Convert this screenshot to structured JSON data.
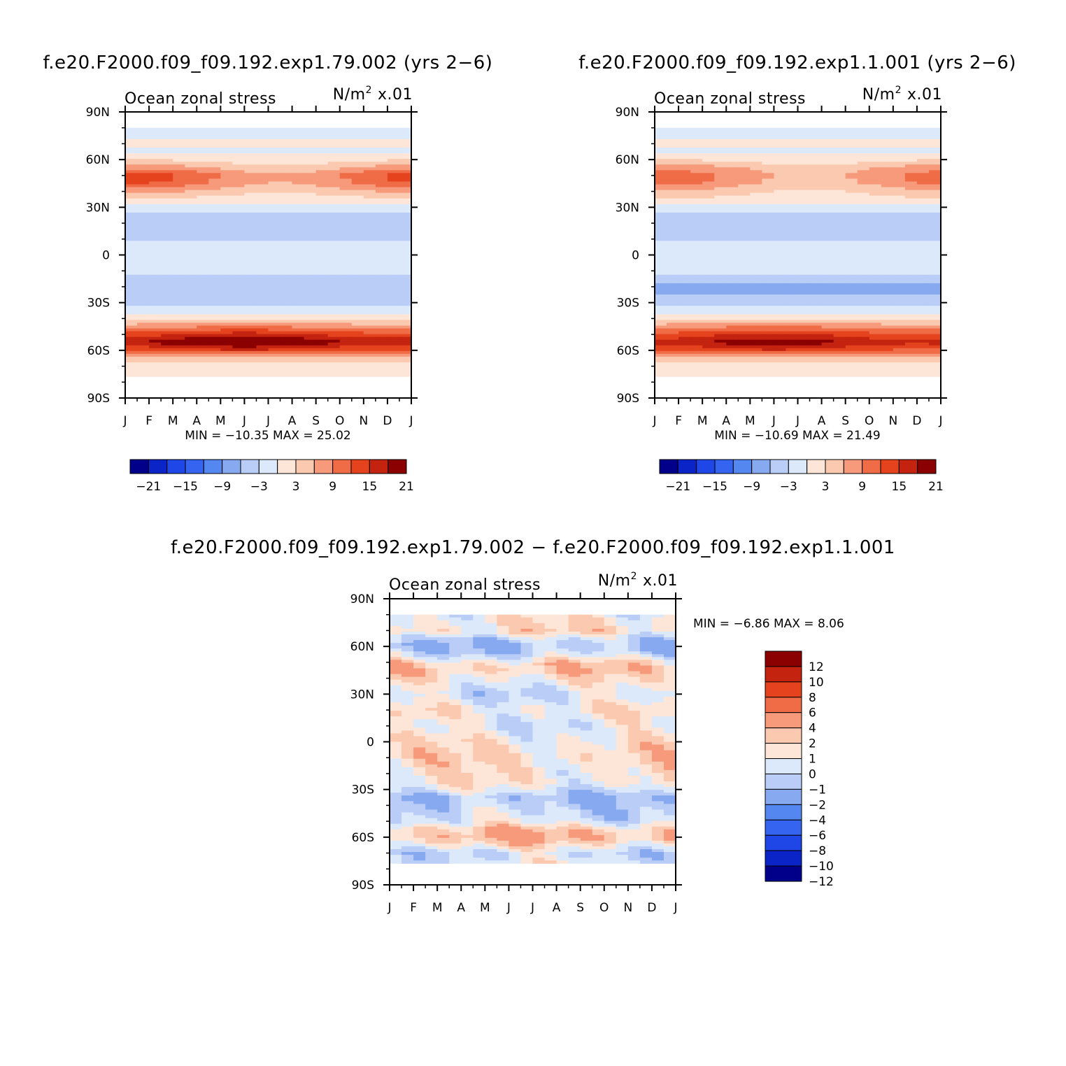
{
  "palette": [
    "#00008b",
    "#0b24c8",
    "#1f46e6",
    "#3565f0",
    "#5487f0",
    "#86a9f0",
    "#b9cdf7",
    "#dce9fb",
    "#fde6d7",
    "#fbc9b0",
    "#f69a7b",
    "#ef6c47",
    "#e5431e",
    "#c42310",
    "#8b0000"
  ],
  "chart_data": [
    {
      "id": "p1",
      "type": "heatmap",
      "title": "f.e20.F2000.f09_f09.192.exp1.79.002 (yrs 2−6)",
      "subtitle_left": "Ocean zonal stress",
      "subtitle_right_units": "N/m",
      "subtitle_right_exp": "2",
      "subtitle_right_scale": "x.01",
      "x_tick_labels": [
        "J",
        "F",
        "M",
        "A",
        "M",
        "J",
        "J",
        "A",
        "S",
        "O",
        "N",
        "D",
        "J"
      ],
      "y_tick_labels": [
        "90N",
        "60N",
        "30N",
        "0",
        "30S",
        "60S",
        "90S"
      ],
      "x_range": [
        0,
        12
      ],
      "y_range": [
        -90,
        90
      ],
      "stats_text": "MIN = −10.35 MAX =   25.02",
      "min": -10.35,
      "max": 25.02,
      "colorbar": {
        "orientation": "horizontal",
        "levels": [
          -21,
          -18,
          -15,
          -12,
          -9,
          -6,
          -3,
          0,
          3,
          6,
          9,
          12,
          15,
          18,
          21
        ],
        "labels": [
          "−21",
          "−15",
          "−9",
          "−3",
          "3",
          "9",
          "15",
          "21"
        ]
      },
      "zonal_profile": [
        [
          -78,
          0
        ],
        [
          -70,
          1.5
        ],
        [
          -64,
          6
        ],
        [
          -60,
          13
        ],
        [
          -55,
          20
        ],
        [
          -50,
          15
        ],
        [
          -45,
          8
        ],
        [
          -40,
          3
        ],
        [
          -35,
          -2
        ],
        [
          -30,
          -4
        ],
        [
          -25,
          -6
        ],
        [
          -18,
          -5
        ],
        [
          -12,
          -3
        ],
        [
          -6,
          -2
        ],
        [
          0,
          -1
        ],
        [
          6,
          -2
        ],
        [
          10,
          -4
        ],
        [
          15,
          -6
        ],
        [
          20,
          -5
        ],
        [
          26,
          -3
        ],
        [
          30,
          -1
        ],
        [
          35,
          2
        ],
        [
          40,
          5
        ],
        [
          45,
          9
        ],
        [
          50,
          10
        ],
        [
          55,
          6
        ],
        [
          60,
          2
        ],
        [
          65,
          -1
        ],
        [
          70,
          0.5
        ],
        [
          80,
          -1
        ]
      ]
    },
    {
      "id": "p2",
      "type": "heatmap",
      "title": "f.e20.F2000.f09_f09.192.exp1.1.001 (yrs 2−6)",
      "subtitle_left": "Ocean zonal stress",
      "subtitle_right_units": "N/m",
      "subtitle_right_exp": "2",
      "subtitle_right_scale": "x.01",
      "x_tick_labels": [
        "J",
        "F",
        "M",
        "A",
        "M",
        "J",
        "J",
        "A",
        "S",
        "O",
        "N",
        "D",
        "J"
      ],
      "y_tick_labels": [
        "90N",
        "60N",
        "30N",
        "0",
        "30S",
        "60S",
        "90S"
      ],
      "x_range": [
        0,
        12
      ],
      "y_range": [
        -90,
        90
      ],
      "stats_text": "MIN = −10.69 MAX =   21.49",
      "min": -10.69,
      "max": 21.49,
      "colorbar": {
        "orientation": "horizontal",
        "levels": [
          -21,
          -18,
          -15,
          -12,
          -9,
          -6,
          -3,
          0,
          3,
          6,
          9,
          12,
          15,
          18,
          21
        ],
        "labels": [
          "−21",
          "−15",
          "−9",
          "−3",
          "3",
          "9",
          "15",
          "21"
        ]
      },
      "zonal_profile": [
        [
          -78,
          0
        ],
        [
          -70,
          1.5
        ],
        [
          -64,
          6
        ],
        [
          -60,
          13
        ],
        [
          -55,
          18
        ],
        [
          -50,
          14
        ],
        [
          -45,
          8
        ],
        [
          -40,
          3
        ],
        [
          -35,
          -2
        ],
        [
          -30,
          -4
        ],
        [
          -25,
          -6
        ],
        [
          -18,
          -6
        ],
        [
          -12,
          -3
        ],
        [
          -6,
          -2
        ],
        [
          0,
          -1
        ],
        [
          6,
          -2
        ],
        [
          10,
          -4
        ],
        [
          15,
          -6
        ],
        [
          20,
          -5
        ],
        [
          26,
          -3
        ],
        [
          30,
          -1
        ],
        [
          35,
          2
        ],
        [
          40,
          4
        ],
        [
          45,
          7
        ],
        [
          50,
          8
        ],
        [
          55,
          6
        ],
        [
          60,
          2
        ],
        [
          65,
          -1
        ],
        [
          70,
          0.5
        ],
        [
          80,
          -1
        ]
      ]
    },
    {
      "id": "p3",
      "type": "heatmap",
      "title": "f.e20.F2000.f09_f09.192.exp1.79.002 − f.e20.F2000.f09_f09.192.exp1.1.001",
      "subtitle_left": "Ocean zonal stress",
      "subtitle_right_units": "N/m",
      "subtitle_right_exp": "2",
      "subtitle_right_scale": "x.01",
      "x_tick_labels": [
        "J",
        "F",
        "M",
        "A",
        "M",
        "J",
        "J",
        "A",
        "S",
        "O",
        "N",
        "D",
        "J"
      ],
      "y_tick_labels": [
        "90N",
        "60N",
        "30N",
        "0",
        "30S",
        "60S",
        "90S"
      ],
      "x_range": [
        0,
        12
      ],
      "y_range": [
        -90,
        90
      ],
      "stats_text": "MIN =   −6.86 MAX =     8.06",
      "min": -6.86,
      "max": 8.06,
      "colorbar": {
        "orientation": "vertical",
        "levels": [
          -12,
          -10,
          -8,
          -6,
          -4,
          -2,
          -1,
          0,
          1,
          2,
          4,
          6,
          8,
          10,
          12
        ],
        "labels": [
          "12",
          "10",
          "8",
          "6",
          "4",
          "2",
          "1",
          "0",
          "−1",
          "−2",
          "−4",
          "−6",
          "−8",
          "−10",
          "−12"
        ]
      },
      "zonal_profile": [
        [
          -78,
          0
        ],
        [
          -70,
          -1
        ],
        [
          -64,
          1
        ],
        [
          -60,
          2
        ],
        [
          -55,
          1.5
        ],
        [
          -50,
          -0.5
        ],
        [
          -45,
          -1
        ],
        [
          -40,
          -1.5
        ],
        [
          -35,
          -2
        ],
        [
          -30,
          -0.5
        ],
        [
          -25,
          0.5
        ],
        [
          -18,
          0.5
        ],
        [
          -10,
          1
        ],
        [
          0,
          0.5
        ],
        [
          10,
          -0.5
        ],
        [
          20,
          0.5
        ],
        [
          30,
          -1
        ],
        [
          40,
          0.5
        ],
        [
          45,
          1.5
        ],
        [
          50,
          1
        ],
        [
          55,
          -1
        ],
        [
          60,
          -2
        ],
        [
          65,
          -1
        ],
        [
          70,
          1
        ],
        [
          80,
          0
        ]
      ]
    }
  ]
}
